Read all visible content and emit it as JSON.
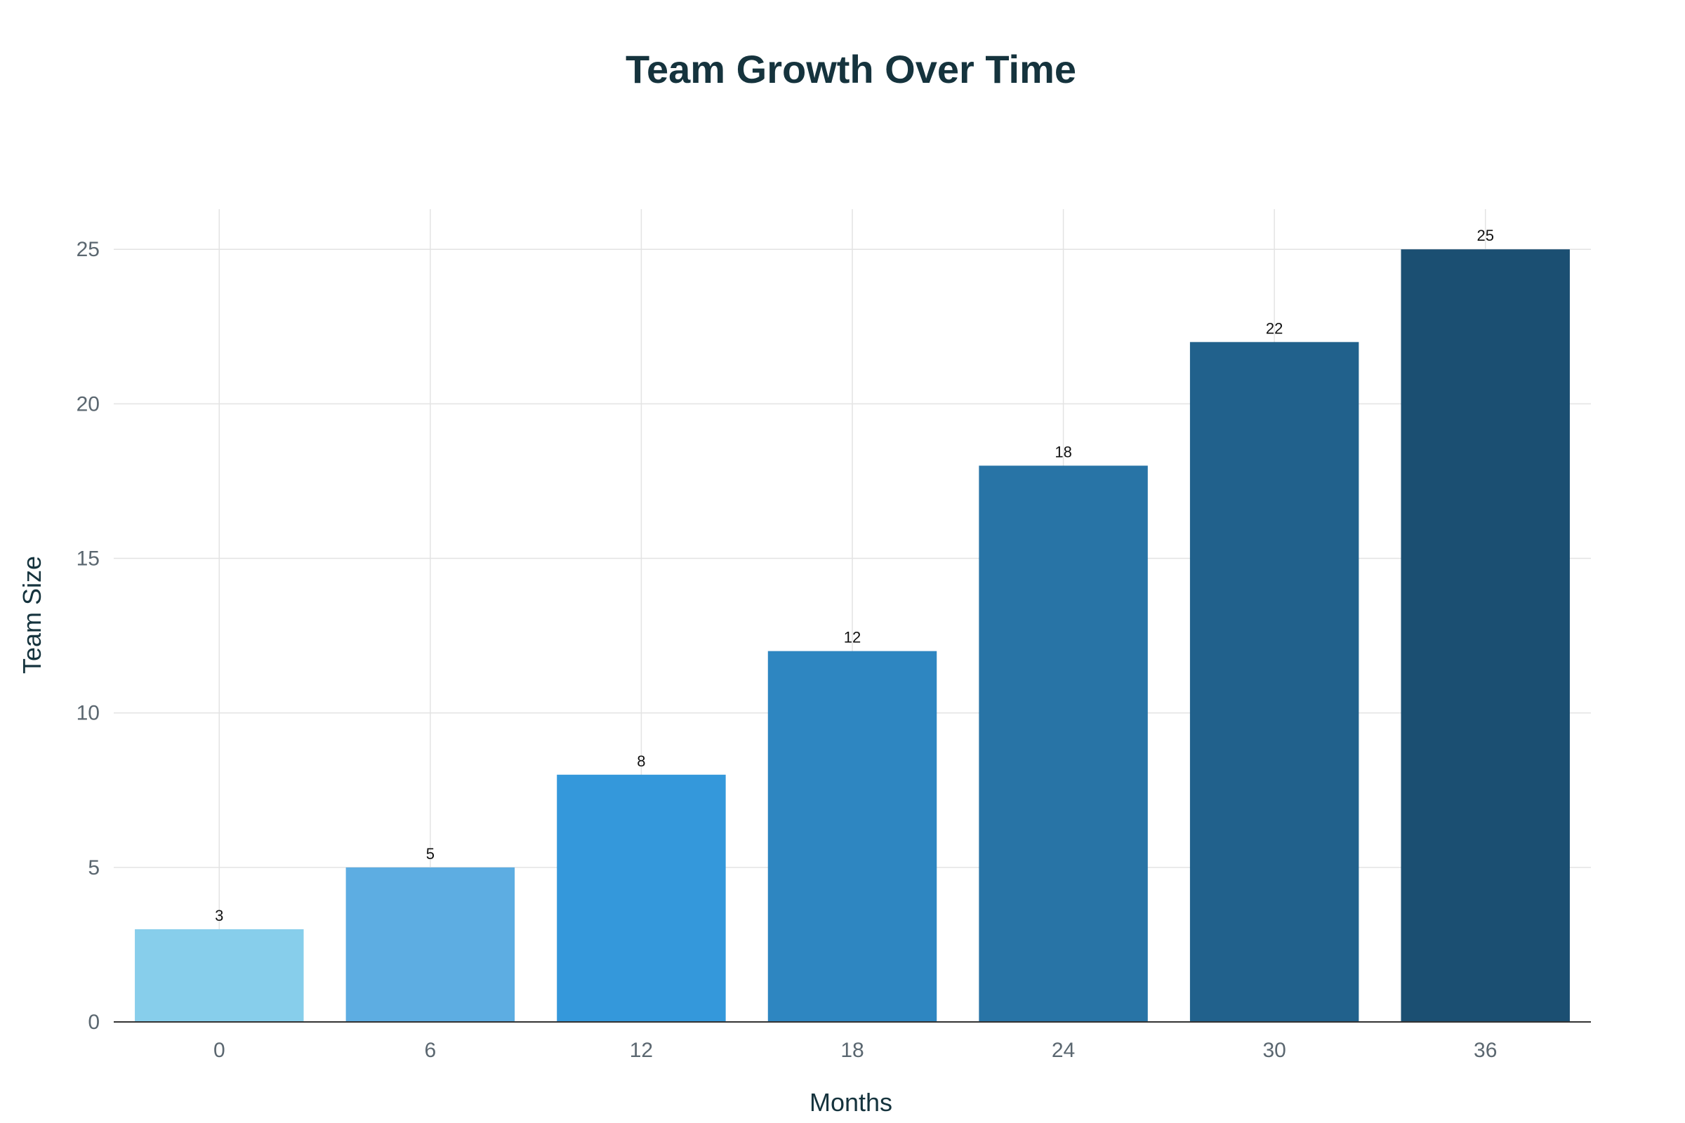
{
  "chart_data": {
    "type": "bar",
    "title": "Team Growth Over Time",
    "xlabel": "Months",
    "ylabel": "Team Size",
    "categories": [
      "0",
      "6",
      "12",
      "18",
      "24",
      "30",
      "36"
    ],
    "values": [
      3,
      5,
      8,
      12,
      18,
      22,
      25
    ],
    "data_labels": [
      "3",
      "5",
      "8",
      "12",
      "18",
      "22",
      "25"
    ],
    "colors": [
      "#87CEEB",
      "#5DADE2",
      "#3498DB",
      "#2E86C1",
      "#2874A6",
      "#21618C",
      "#1B4F72"
    ],
    "ylim": [
      0,
      26.3
    ],
    "yticks": [
      0,
      5,
      10,
      15,
      20,
      25
    ],
    "grid": true,
    "legend": "none"
  }
}
